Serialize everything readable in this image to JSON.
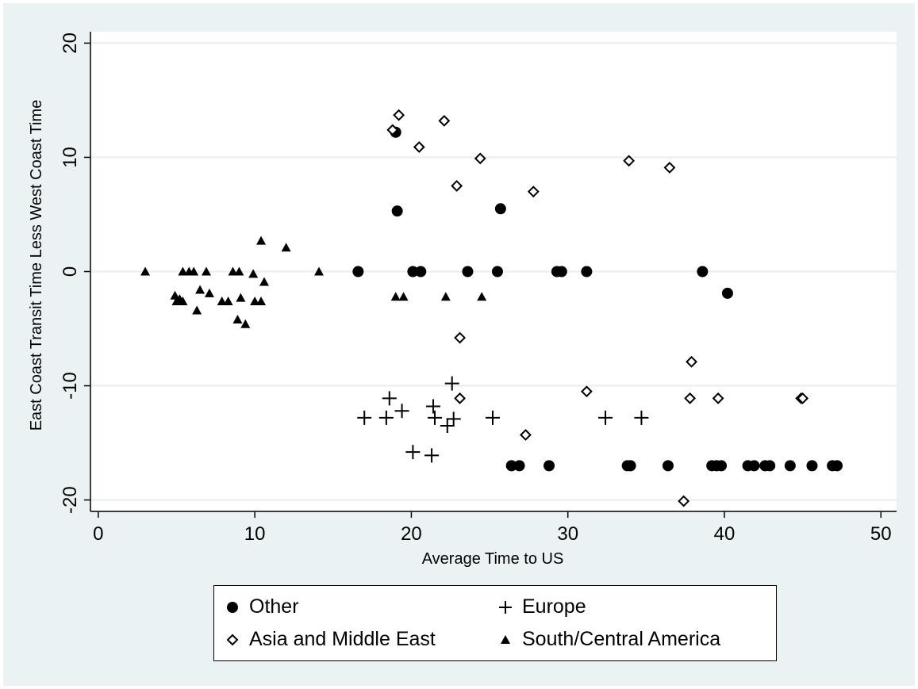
{
  "chart_data": {
    "type": "scatter",
    "xlabel": "Average Time to US",
    "ylabel": "East Coast Transit Time Less West Coast Time",
    "xlim": [
      -0.5,
      51
    ],
    "ylim": [
      -21,
      21
    ],
    "xticks": [
      0,
      10,
      20,
      30,
      40,
      50
    ],
    "yticks": [
      -20,
      -10,
      0,
      10,
      20
    ],
    "grid": "horizontal",
    "legend_position": "bottom",
    "series": [
      {
        "name": "Other",
        "marker": "circle-filled",
        "points": [
          [
            19.0,
            12.2
          ],
          [
            19.1,
            5.3
          ],
          [
            25.7,
            5.5
          ],
          [
            16.6,
            0
          ],
          [
            20.1,
            0
          ],
          [
            20.6,
            0
          ],
          [
            23.6,
            0
          ],
          [
            25.5,
            0
          ],
          [
            29.3,
            0
          ],
          [
            29.6,
            0
          ],
          [
            31.2,
            0
          ],
          [
            38.6,
            0
          ],
          [
            40.2,
            -1.9
          ],
          [
            26.4,
            -17
          ],
          [
            26.9,
            -17
          ],
          [
            28.8,
            -17
          ],
          [
            33.8,
            -17
          ],
          [
            34.0,
            -17
          ],
          [
            36.4,
            -17
          ],
          [
            39.2,
            -17
          ],
          [
            39.5,
            -17
          ],
          [
            39.8,
            -17
          ],
          [
            41.5,
            -17
          ],
          [
            41.9,
            -17
          ],
          [
            42.6,
            -17
          ],
          [
            42.9,
            -17
          ],
          [
            44.2,
            -17
          ],
          [
            45.6,
            -17
          ],
          [
            46.9,
            -17
          ],
          [
            47.2,
            -17
          ]
        ]
      },
      {
        "name": "Europe",
        "marker": "plus",
        "points": [
          [
            17.0,
            -12.8
          ],
          [
            18.4,
            -12.8
          ],
          [
            18.6,
            -11.1
          ],
          [
            19.4,
            -12.2
          ],
          [
            20.1,
            -15.8
          ],
          [
            21.4,
            -11.8
          ],
          [
            21.5,
            -12.8
          ],
          [
            21.3,
            -16.1
          ],
          [
            22.3,
            -13.5
          ],
          [
            22.7,
            -12.9
          ],
          [
            22.6,
            -9.8
          ],
          [
            25.2,
            -12.8
          ],
          [
            32.4,
            -12.8
          ],
          [
            34.7,
            -12.8
          ]
        ]
      },
      {
        "name": "Asia and Middle East",
        "marker": "diamond-open",
        "points": [
          [
            18.8,
            12.4
          ],
          [
            19.2,
            13.7
          ],
          [
            20.5,
            10.9
          ],
          [
            22.1,
            13.2
          ],
          [
            22.9,
            7.5
          ],
          [
            24.4,
            9.9
          ],
          [
            27.8,
            7.0
          ],
          [
            33.9,
            9.7
          ],
          [
            36.5,
            9.1
          ],
          [
            23.1,
            -5.8
          ],
          [
            23.1,
            -11.1
          ],
          [
            27.3,
            -14.3
          ],
          [
            31.2,
            -10.5
          ],
          [
            37.9,
            -7.9
          ],
          [
            37.8,
            -11.1
          ],
          [
            39.6,
            -11.1
          ],
          [
            44.9,
            -11.1
          ],
          [
            45.0,
            -11.1
          ],
          [
            37.4,
            -20.1
          ]
        ]
      },
      {
        "name": "South/Central America",
        "marker": "triangle-filled",
        "points": [
          [
            3.0,
            0
          ],
          [
            5.4,
            0
          ],
          [
            5.8,
            0
          ],
          [
            6.1,
            0
          ],
          [
            6.9,
            0
          ],
          [
            8.6,
            0
          ],
          [
            9.0,
            0
          ],
          [
            9.9,
            -0.2
          ],
          [
            10.4,
            2.7
          ],
          [
            12.0,
            2.1
          ],
          [
            14.1,
            0
          ],
          [
            10.6,
            -0.9
          ],
          [
            4.9,
            -2.1
          ],
          [
            5.0,
            -2.6
          ],
          [
            5.2,
            -2.4
          ],
          [
            5.4,
            -2.6
          ],
          [
            6.3,
            -3.4
          ],
          [
            6.5,
            -1.6
          ],
          [
            7.1,
            -1.9
          ],
          [
            7.9,
            -2.6
          ],
          [
            8.3,
            -2.6
          ],
          [
            8.9,
            -4.2
          ],
          [
            9.1,
            -2.3
          ],
          [
            9.4,
            -4.6
          ],
          [
            10.0,
            -2.6
          ],
          [
            10.4,
            -2.6
          ],
          [
            19.0,
            -2.2
          ],
          [
            19.5,
            -2.2
          ],
          [
            22.2,
            -2.2
          ],
          [
            24.5,
            -2.2
          ]
        ]
      }
    ]
  },
  "colors": {
    "figure_background": "#eaf2f3",
    "plot_background": "#ffffff",
    "gridline": "#eaf2f3",
    "marker": "#000000"
  }
}
